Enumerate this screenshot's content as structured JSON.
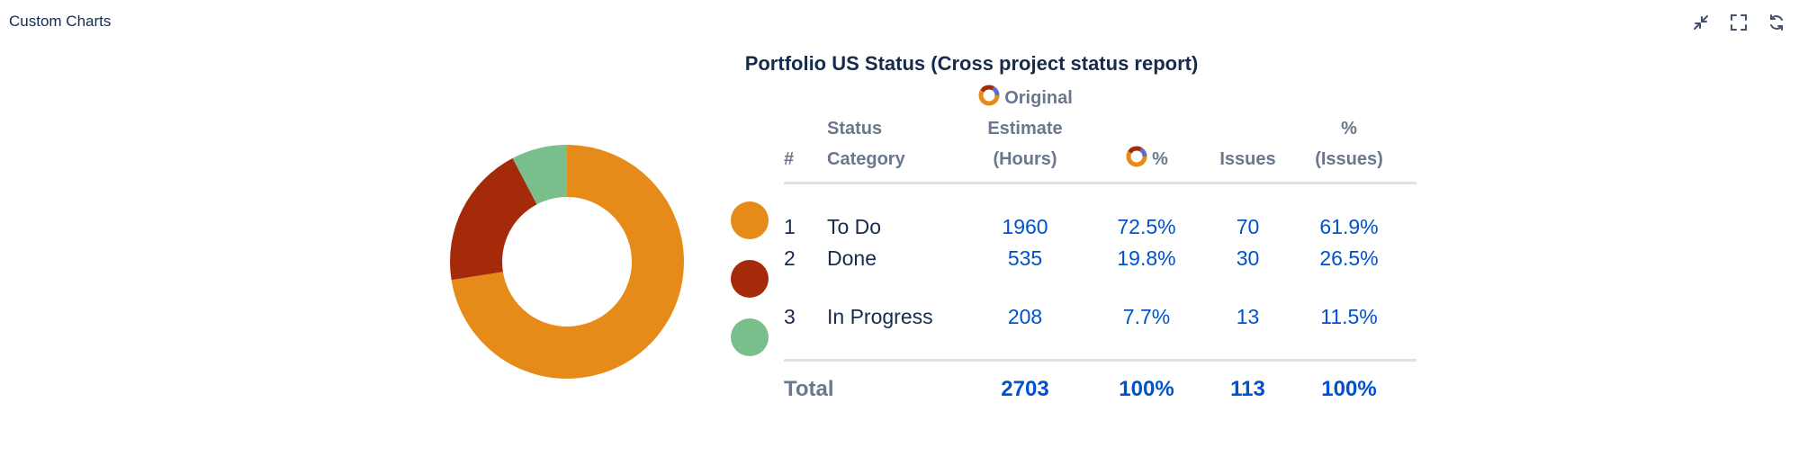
{
  "gadget": {
    "title": "Custom Charts",
    "actions": [
      {
        "name": "minimize-icon"
      },
      {
        "name": "fullscreen-icon"
      },
      {
        "name": "refresh-icon"
      }
    ]
  },
  "chart_data": {
    "type": "pie",
    "style": "donut",
    "title": "Portfolio US Status (Cross project status report)",
    "columns": [
      "#",
      "Status Category",
      "Original Estimate (Hours)",
      "%",
      "Issues",
      "% (Issues)"
    ],
    "rows": [
      {
        "index": "1",
        "category": "To Do",
        "estimate": "1960",
        "pct": "72.5%",
        "issues": "70",
        "pct_issues": "61.9%",
        "value": 1960,
        "color": "#e68b1a"
      },
      {
        "index": "2",
        "category": "Done",
        "estimate": "535",
        "pct": "19.8%",
        "issues": "30",
        "pct_issues": "26.5%",
        "value": 535,
        "color": "#a52a0a"
      },
      {
        "index": "3",
        "category": "In Progress",
        "estimate": "208",
        "pct": "7.7%",
        "issues": "13",
        "pct_issues": "11.5%",
        "value": 208,
        "color": "#79bf8c"
      }
    ],
    "total": {
      "label": "Total",
      "estimate": "2703",
      "pct": "100%",
      "issues": "113",
      "pct_issues": "100%"
    }
  },
  "header": {
    "col_index": "#",
    "col_status_line1": "Status",
    "col_status_line2": "Category",
    "col_estimate_line1": "Original",
    "col_estimate_line2": "Estimate",
    "col_estimate_line3": "(Hours)",
    "col_pct": "%",
    "col_issues": "Issues",
    "col_pct_issues_line1": "%",
    "col_pct_issues_line2": "(Issues)"
  },
  "colors": {
    "link": "#0052cc",
    "header": "#6b778c",
    "text": "#172b4d"
  }
}
